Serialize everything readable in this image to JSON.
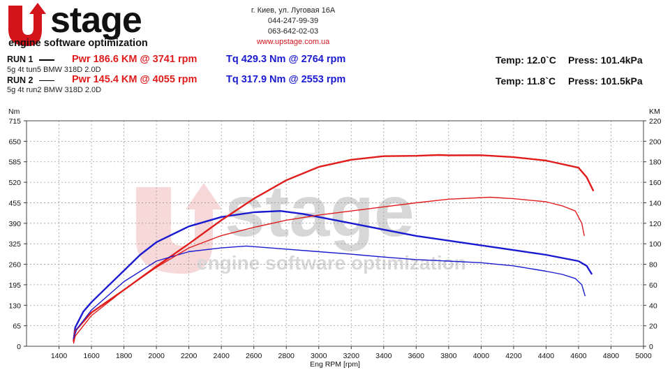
{
  "header": {
    "logo": {
      "brand": "UPstage",
      "tagline": "engine software optimization"
    },
    "contact": {
      "address": "г. Киев, ул. Луговая 16А",
      "phone1": "044-247-99-39",
      "phone2": "063-642-02-03",
      "website": "www.upstage.com.ua"
    }
  },
  "runs": [
    {
      "label": "RUN 1",
      "description": "5g 4t tun5 BMW 318D 2.0D",
      "power": "Pwr  186.6 KM @ 3741 rpm",
      "torque": "Tq 429.3 Nm @ 2764 rpm",
      "temp": "Temp: 12.0`C",
      "press": "Press: 101.4kPa"
    },
    {
      "label": "RUN 2",
      "description": "5g 4t run2 BMW 318D 2.0D",
      "power": "Pwr  145.4 KM @ 4055 rpm",
      "torque": "Tq 317.9 Nm @ 2553 rpm",
      "temp": "Temp: 11.8`C",
      "press": "Press: 101.5kPa"
    }
  ],
  "colors": {
    "power": "#e11c1c",
    "torque": "#1a1ad0",
    "brand_red": "#d3141b",
    "grid": "#9a9a9a"
  },
  "chart_data": {
    "type": "line",
    "xlabel": "Eng RPM [rpm]",
    "ylabel_left": "Nm",
    "ylabel_right": "KM",
    "xlim": [
      1200,
      5000
    ],
    "x_ticks": [
      1400,
      1600,
      1800,
      2000,
      2200,
      2400,
      2600,
      2800,
      3000,
      3200,
      3400,
      3600,
      3800,
      4000,
      4200,
      4400,
      4600,
      4800,
      5000
    ],
    "ylim_left": [
      0,
      715
    ],
    "y_ticks_left": [
      0,
      65,
      130,
      195,
      260,
      325,
      390,
      455,
      520,
      585,
      650,
      715
    ],
    "ylim_right": [
      0,
      220
    ],
    "y_ticks_right": [
      0,
      20,
      40,
      60,
      80,
      100,
      120,
      140,
      160,
      180,
      200,
      220
    ],
    "grid": true,
    "series": [
      {
        "name": "RUN 1",
        "quantity": "torque",
        "axis": "left",
        "color": "#1a1ad0",
        "width": 2.4,
        "points": [
          [
            1490,
            20
          ],
          [
            1500,
            60
          ],
          [
            1550,
            110
          ],
          [
            1600,
            140
          ],
          [
            1700,
            190
          ],
          [
            1800,
            240
          ],
          [
            1900,
            290
          ],
          [
            2000,
            330
          ],
          [
            2200,
            380
          ],
          [
            2400,
            410
          ],
          [
            2600,
            425
          ],
          [
            2764,
            429
          ],
          [
            2900,
            420
          ],
          [
            3000,
            410
          ],
          [
            3200,
            390
          ],
          [
            3400,
            370
          ],
          [
            3600,
            350
          ],
          [
            3800,
            335
          ],
          [
            4000,
            320
          ],
          [
            4200,
            305
          ],
          [
            4400,
            290
          ],
          [
            4500,
            280
          ],
          [
            4600,
            270
          ],
          [
            4650,
            255
          ],
          [
            4680,
            230
          ]
        ]
      },
      {
        "name": "RUN 1",
        "quantity": "power",
        "axis": "right",
        "color": "#e11c1c",
        "width": 2.4,
        "points": [
          [
            1490,
            5
          ],
          [
            1500,
            15
          ],
          [
            1600,
            33
          ],
          [
            1800,
            55
          ],
          [
            2000,
            78
          ],
          [
            2200,
            100
          ],
          [
            2400,
            123
          ],
          [
            2600,
            144
          ],
          [
            2800,
            162
          ],
          [
            3000,
            175
          ],
          [
            3200,
            182
          ],
          [
            3400,
            185.5
          ],
          [
            3600,
            185.8
          ],
          [
            3741,
            186.6
          ],
          [
            3800,
            186.3
          ],
          [
            4000,
            186.4
          ],
          [
            4200,
            184.5
          ],
          [
            4400,
            181.2
          ],
          [
            4600,
            174.2
          ],
          [
            4650,
            165
          ],
          [
            4690,
            152
          ]
        ]
      },
      {
        "name": "RUN 2",
        "quantity": "torque",
        "axis": "left",
        "color": "#1a1ad0",
        "width": 1.4,
        "points": [
          [
            1490,
            25
          ],
          [
            1510,
            55
          ],
          [
            1600,
            115
          ],
          [
            1800,
            205
          ],
          [
            2000,
            270
          ],
          [
            2200,
            300
          ],
          [
            2400,
            312
          ],
          [
            2553,
            317.9
          ],
          [
            2700,
            312
          ],
          [
            3000,
            300
          ],
          [
            3200,
            292
          ],
          [
            3400,
            283
          ],
          [
            3600,
            275
          ],
          [
            3800,
            270
          ],
          [
            4000,
            265
          ],
          [
            4200,
            255
          ],
          [
            4400,
            238
          ],
          [
            4500,
            228
          ],
          [
            4580,
            215
          ],
          [
            4620,
            195
          ],
          [
            4640,
            160
          ]
        ]
      },
      {
        "name": "RUN 2",
        "quantity": "power",
        "axis": "right",
        "color": "#e11c1c",
        "width": 1.4,
        "points": [
          [
            1490,
            3
          ],
          [
            1500,
            10
          ],
          [
            1600,
            30
          ],
          [
            1800,
            55
          ],
          [
            2000,
            77
          ],
          [
            2200,
            96
          ],
          [
            2400,
            108
          ],
          [
            2600,
            116
          ],
          [
            2800,
            123
          ],
          [
            3000,
            128
          ],
          [
            3200,
            132
          ],
          [
            3400,
            136
          ],
          [
            3600,
            140
          ],
          [
            3800,
            143.5
          ],
          [
            4055,
            145.4
          ],
          [
            4200,
            144
          ],
          [
            4400,
            141
          ],
          [
            4500,
            137
          ],
          [
            4580,
            132
          ],
          [
            4620,
            120
          ],
          [
            4635,
            108
          ]
        ]
      }
    ]
  }
}
